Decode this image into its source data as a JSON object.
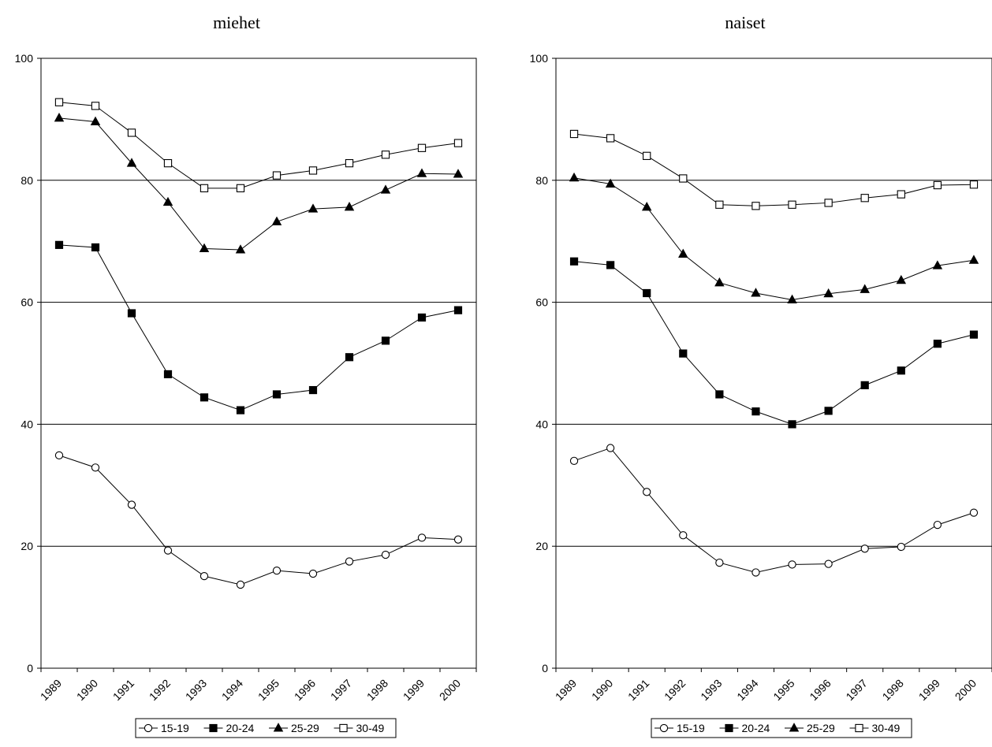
{
  "chart_data": [
    {
      "type": "line",
      "title": "miehet",
      "xlabel": "",
      "ylabel": "",
      "categories": [
        "1989",
        "1990",
        "1991",
        "1992",
        "1993",
        "1994",
        "1995",
        "1996",
        "1997",
        "1998",
        "1999",
        "2000"
      ],
      "ylim": [
        0,
        100
      ],
      "yticks": [
        "0",
        "20",
        "40",
        "60",
        "80",
        "100"
      ],
      "grid": "horizontal at 20, 40, 60, 80",
      "legend_position": "bottom",
      "series": [
        {
          "name": "15-19",
          "marker": "circle-open",
          "values": [
            34.9,
            32.9,
            26.8,
            19.3,
            15.1,
            13.7,
            16.0,
            15.5,
            17.5,
            18.6,
            21.4,
            21.1
          ]
        },
        {
          "name": "20-24",
          "marker": "square-filled",
          "values": [
            69.4,
            69.0,
            58.2,
            48.2,
            44.4,
            42.3,
            44.9,
            45.6,
            51.0,
            53.7,
            57.5,
            58.7
          ]
        },
        {
          "name": "25-29",
          "marker": "triangle-filled",
          "values": [
            90.2,
            89.6,
            82.8,
            76.4,
            68.8,
            68.6,
            73.2,
            75.3,
            75.6,
            78.4,
            81.1,
            81.0
          ]
        },
        {
          "name": "30-49",
          "marker": "square-open",
          "values": [
            92.8,
            92.2,
            87.8,
            82.8,
            78.7,
            78.7,
            80.8,
            81.6,
            82.8,
            84.2,
            85.3,
            86.1
          ]
        }
      ]
    },
    {
      "type": "line",
      "title": "naiset",
      "xlabel": "",
      "ylabel": "",
      "categories": [
        "1989",
        "1990",
        "1991",
        "1992",
        "1993",
        "1994",
        "1995",
        "1996",
        "1997",
        "1998",
        "1999",
        "2000"
      ],
      "ylim": [
        0,
        100
      ],
      "yticks": [
        "0",
        "20",
        "40",
        "60",
        "80",
        "100"
      ],
      "grid": "horizontal at 20, 40, 60, 80",
      "legend_position": "bottom",
      "series": [
        {
          "name": "15-19",
          "marker": "circle-open",
          "values": [
            34.0,
            36.1,
            28.9,
            21.8,
            17.3,
            15.7,
            17.0,
            17.1,
            19.6,
            19.9,
            23.5,
            25.5
          ]
        },
        {
          "name": "20-24",
          "marker": "square-filled",
          "values": [
            66.7,
            66.1,
            61.5,
            51.6,
            44.9,
            42.1,
            40.0,
            42.2,
            46.4,
            48.8,
            53.2,
            54.7
          ]
        },
        {
          "name": "25-29",
          "marker": "triangle-filled",
          "values": [
            80.4,
            79.4,
            75.6,
            67.9,
            63.2,
            61.5,
            60.4,
            61.4,
            62.1,
            63.6,
            66.0,
            66.9
          ]
        },
        {
          "name": "30-49",
          "marker": "square-open",
          "values": [
            87.6,
            86.9,
            84.0,
            80.3,
            76.0,
            75.8,
            76.0,
            76.3,
            77.1,
            77.7,
            79.2,
            79.3
          ]
        }
      ]
    }
  ]
}
